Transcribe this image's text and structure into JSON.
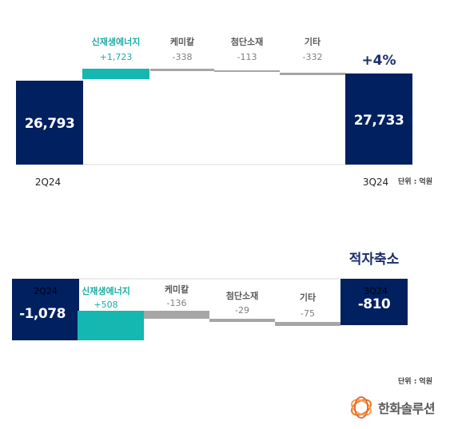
{
  "colors": {
    "navy": "#002060",
    "teal": "#14b8b0",
    "gray": "#a6a6a6",
    "accent_text": "#1aaca5",
    "change_text": "#1c2e6b"
  },
  "chart_data": [
    {
      "type": "waterfall",
      "title": "",
      "start": {
        "label": "2Q24",
        "value": 26793,
        "display": "26,793"
      },
      "end": {
        "label": "3Q24",
        "value": 27733,
        "display": "27,733"
      },
      "steps": [
        {
          "name": "신재생에너지",
          "value": 1723,
          "display": "+1,723"
        },
        {
          "name": "케미칼",
          "value": -338,
          "display": "-338"
        },
        {
          "name": "첨단소재",
          "value": -113,
          "display": "-113"
        },
        {
          "name": "기타",
          "value": -332,
          "display": "-332"
        }
      ],
      "change_label": "+4%",
      "unit": "단위 : 억원"
    },
    {
      "type": "waterfall",
      "title": "",
      "start": {
        "label": "2Q24",
        "value": -1078,
        "display": "-1,078"
      },
      "end": {
        "label": "3Q24",
        "value": -810,
        "display": "-810"
      },
      "steps": [
        {
          "name": "신재생에너지",
          "value": 508,
          "display": "+508"
        },
        {
          "name": "케미칼",
          "value": -136,
          "display": "-136"
        },
        {
          "name": "첨단소재",
          "value": -29,
          "display": "-29"
        },
        {
          "name": "기타",
          "value": -75,
          "display": "-75"
        }
      ],
      "change_label": "적자축소",
      "unit": "단위 : 억원"
    }
  ],
  "logo": {
    "name": "한화솔루션",
    "icon": "hanwha-logo-icon"
  }
}
